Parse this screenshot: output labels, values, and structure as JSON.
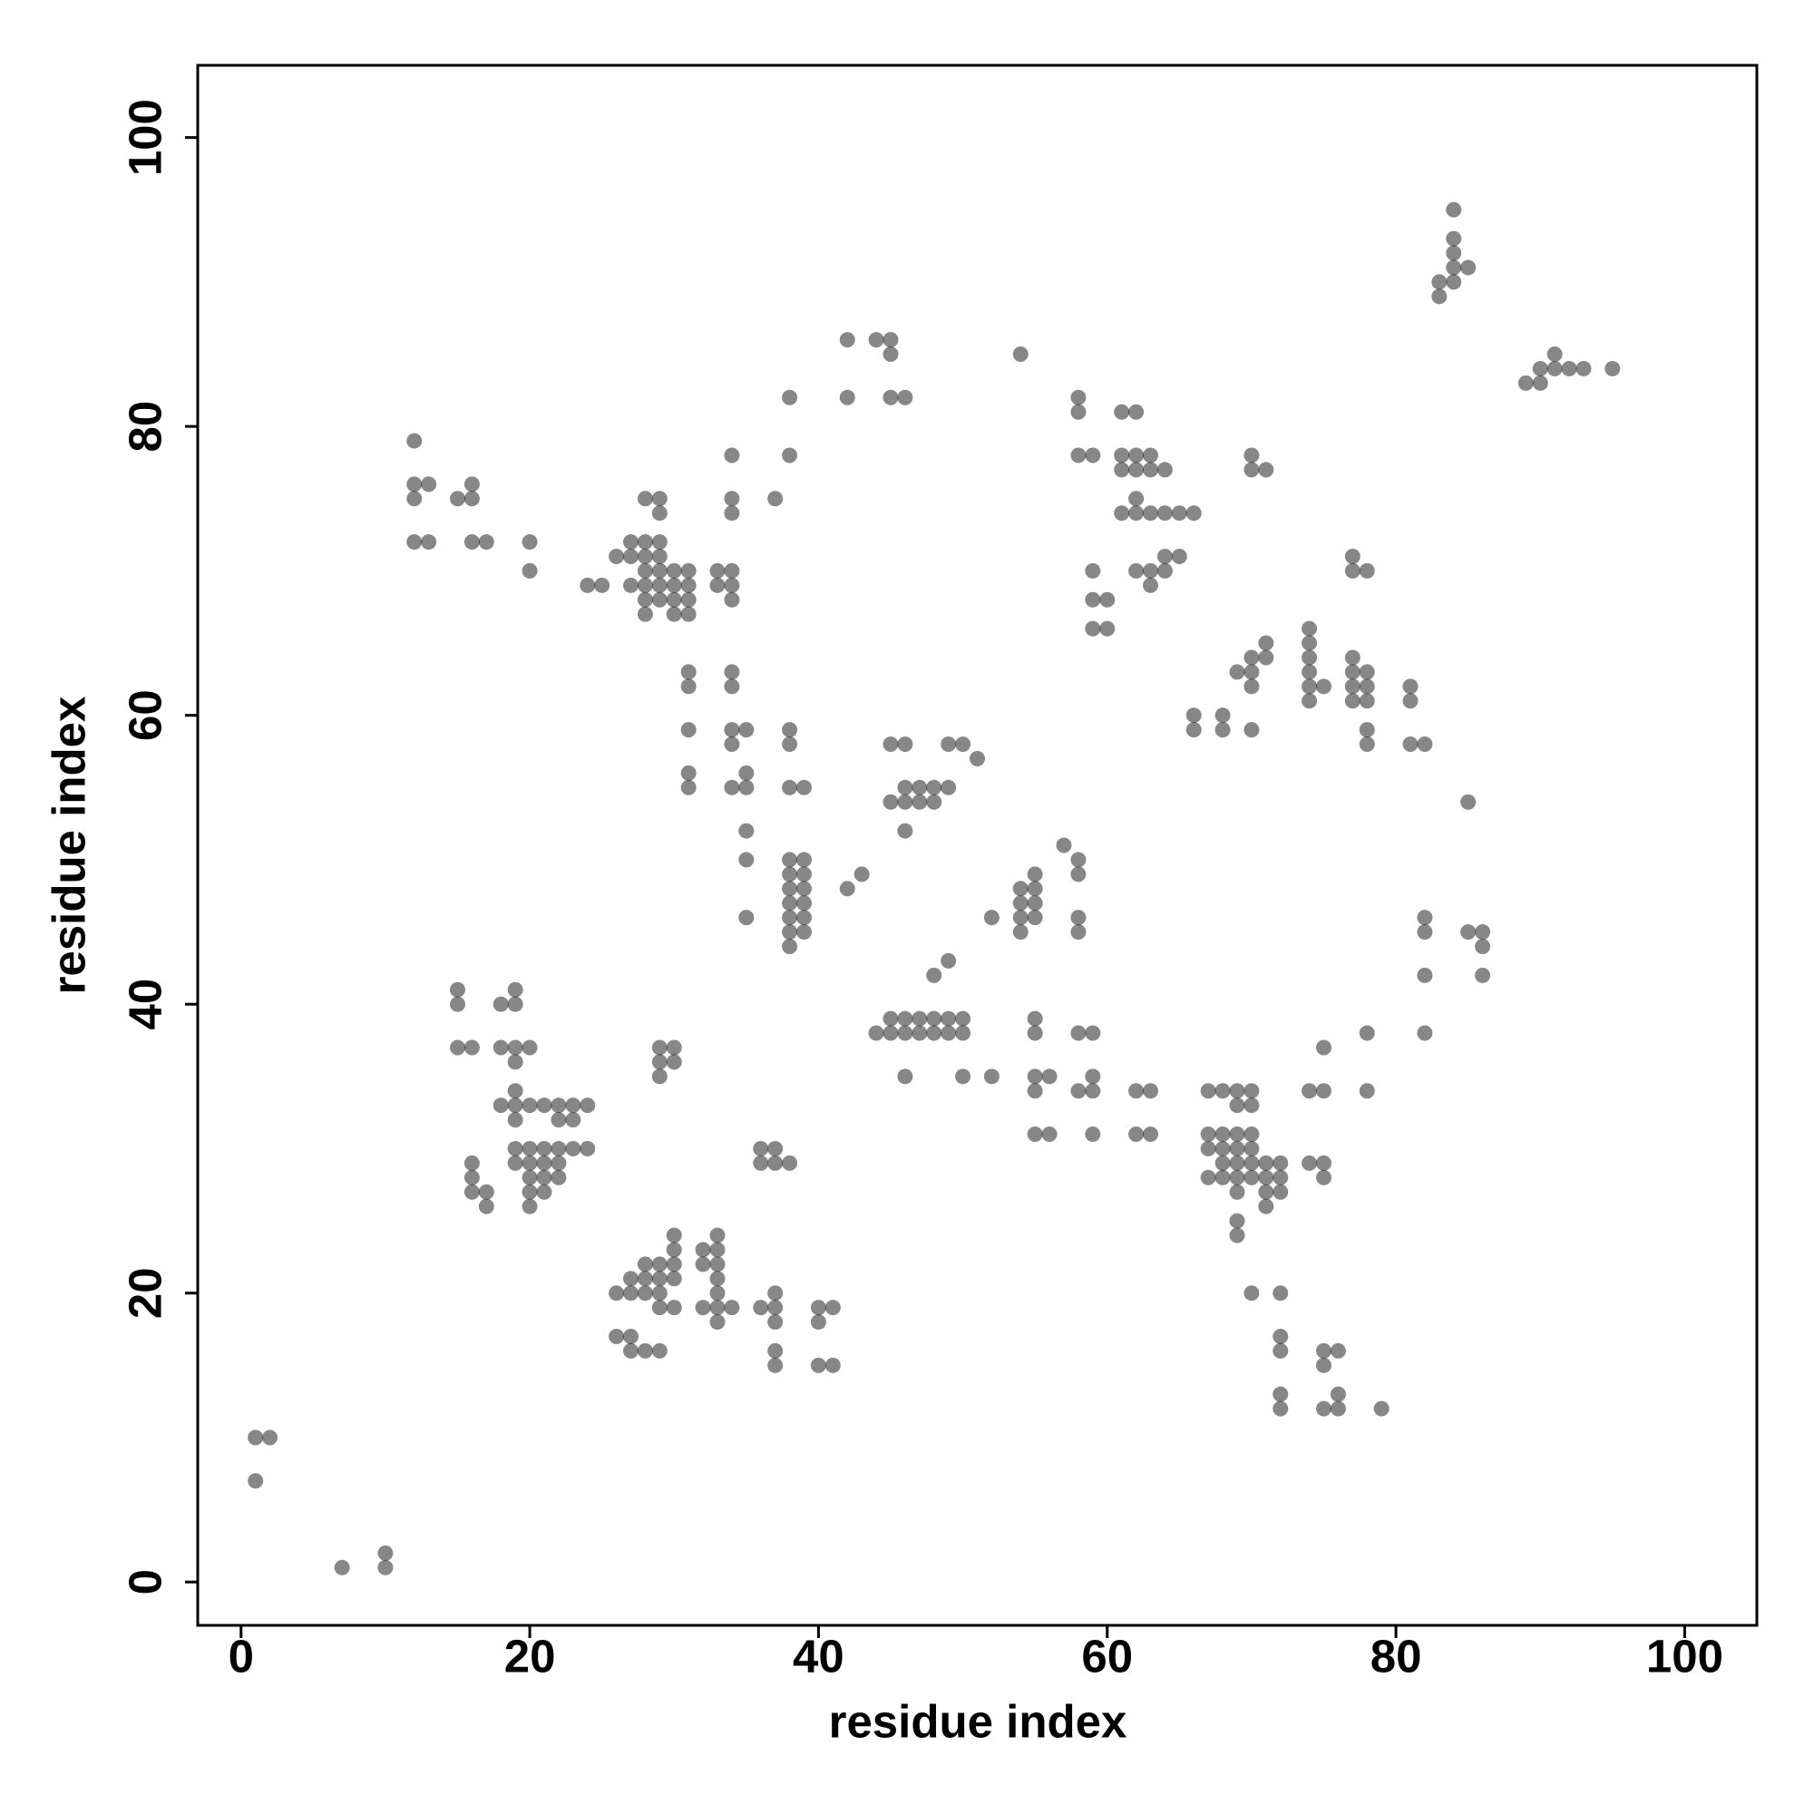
{
  "chart_data": {
    "type": "scatter",
    "xlabel": "residue index",
    "ylabel": "residue index",
    "xlim": [
      -3,
      105
    ],
    "ylim": [
      -3,
      105
    ],
    "xticks": [
      0,
      20,
      40,
      60,
      80,
      100
    ],
    "yticks": [
      0,
      20,
      40,
      60,
      80,
      100
    ],
    "color": "#000000",
    "alpha": 0.47,
    "x": [
      1,
      2,
      1,
      7,
      10,
      10,
      15,
      15,
      19,
      18,
      19,
      15,
      16,
      18,
      19,
      20,
      19,
      18,
      19,
      19,
      20,
      21,
      22,
      23,
      24,
      19,
      22,
      23,
      19,
      20,
      21,
      22,
      23,
      24,
      16,
      19,
      20,
      21,
      22,
      16,
      20,
      21,
      22,
      16,
      17,
      20,
      21,
      17,
      20,
      12,
      12,
      13,
      16,
      12,
      15,
      16,
      12,
      13,
      16,
      17,
      20,
      20,
      24,
      25,
      26,
      27,
      28,
      29,
      27,
      28,
      29,
      28,
      29,
      30,
      31,
      27,
      28,
      29,
      30,
      31,
      28,
      29,
      30,
      31,
      28,
      30,
      31,
      28,
      29,
      29,
      33,
      34,
      33,
      34,
      34,
      34,
      34,
      34,
      37,
      38,
      38,
      42,
      44,
      45,
      45,
      42,
      45,
      46,
      31,
      31,
      34,
      34,
      31,
      34,
      35,
      34,
      31,
      35,
      31,
      34,
      35,
      35,
      35,
      35,
      38,
      38,
      38,
      39,
      38,
      39,
      38,
      39,
      38,
      39,
      38,
      39,
      38,
      39,
      38,
      39,
      38,
      42,
      43,
      45,
      46,
      49,
      50,
      51,
      46,
      47,
      48,
      49,
      45,
      46,
      47,
      48,
      46,
      48,
      49,
      44,
      45,
      46,
      47,
      48,
      45,
      46,
      47,
      48,
      49,
      50,
      49,
      50,
      46,
      50,
      52,
      52,
      54,
      55,
      54,
      55,
      54,
      55,
      54,
      55,
      57,
      58,
      58,
      58,
      58,
      55,
      55,
      58,
      59,
      55,
      56,
      59,
      55,
      58,
      59,
      62,
      63,
      55,
      56,
      59,
      62,
      63,
      58,
      58,
      61,
      62,
      58,
      59,
      61,
      62,
      63,
      61,
      62,
      63,
      64,
      62,
      61,
      62,
      63,
      64,
      65,
      66,
      64,
      65,
      59,
      62,
      63,
      64,
      63,
      59,
      60,
      59,
      60,
      54,
      70,
      70,
      71,
      71,
      70,
      71,
      69,
      70,
      70,
      66,
      68,
      66,
      68,
      70,
      74,
      74,
      74,
      74,
      74,
      75,
      74,
      77,
      77,
      78,
      77,
      78,
      77,
      78,
      77,
      77,
      78,
      78,
      78,
      81,
      81,
      81,
      82,
      85,
      67,
      68,
      69,
      70,
      69,
      70,
      67,
      68,
      69,
      70,
      67,
      68,
      69,
      70,
      68,
      69,
      70,
      71,
      72,
      67,
      68,
      69,
      70,
      71,
      72,
      69,
      71,
      72,
      71,
      69,
      69,
      74,
      75,
      74,
      75,
      75,
      75,
      78,
      78,
      70,
      72,
      72,
      72,
      75,
      76,
      75,
      72,
      76,
      72,
      75,
      76,
      79,
      82,
      82,
      82,
      82,
      85,
      86,
      86,
      86,
      84,
      84,
      84,
      84,
      85,
      83,
      84,
      83,
      89,
      90,
      90,
      91,
      92,
      93,
      95,
      91,
      30,
      33,
      30,
      32,
      33,
      30,
      32,
      33,
      28,
      29,
      27,
      28,
      29,
      30,
      33,
      26,
      27,
      28,
      29,
      33,
      37,
      29,
      30,
      32,
      33,
      34,
      36,
      37,
      40,
      41,
      33,
      37,
      40,
      26,
      27,
      27,
      28,
      29,
      37,
      37,
      40,
      41,
      29,
      30,
      29,
      30,
      29,
      36,
      37,
      37,
      36,
      38
    ],
    "y": [
      10,
      10,
      7,
      1,
      2,
      1,
      41,
      40,
      41,
      40,
      40,
      37,
      37,
      37,
      37,
      37,
      36,
      33,
      34,
      33,
      33,
      33,
      33,
      33,
      33,
      32,
      32,
      32,
      30,
      30,
      30,
      30,
      30,
      30,
      29,
      29,
      29,
      29,
      29,
      28,
      28,
      28,
      28,
      27,
      27,
      27,
      27,
      26,
      26,
      79,
      76,
      76,
      76,
      75,
      75,
      75,
      72,
      72,
      72,
      72,
      72,
      70,
      69,
      69,
      71,
      72,
      72,
      72,
      71,
      71,
      71,
      70,
      70,
      70,
      70,
      69,
      69,
      69,
      69,
      69,
      68,
      68,
      68,
      68,
      67,
      67,
      67,
      75,
      75,
      74,
      70,
      70,
      69,
      69,
      68,
      78,
      75,
      74,
      75,
      82,
      78,
      86,
      86,
      86,
      85,
      82,
      82,
      82,
      63,
      62,
      63,
      62,
      59,
      59,
      59,
      58,
      56,
      56,
      55,
      55,
      55,
      52,
      50,
      46,
      59,
      58,
      55,
      55,
      50,
      50,
      49,
      49,
      48,
      48,
      47,
      47,
      46,
      46,
      45,
      45,
      44,
      48,
      49,
      58,
      58,
      58,
      58,
      57,
      55,
      55,
      55,
      55,
      54,
      54,
      54,
      54,
      52,
      42,
      43,
      38,
      38,
      38,
      38,
      38,
      39,
      39,
      39,
      39,
      39,
      39,
      38,
      38,
      35,
      35,
      35,
      46,
      48,
      48,
      47,
      47,
      46,
      46,
      45,
      49,
      51,
      50,
      49,
      46,
      45,
      39,
      38,
      38,
      38,
      35,
      35,
      35,
      34,
      34,
      34,
      34,
      34,
      31,
      31,
      31,
      31,
      31,
      82,
      81,
      81,
      81,
      78,
      78,
      78,
      78,
      78,
      77,
      77,
      77,
      77,
      75,
      74,
      74,
      74,
      74,
      74,
      74,
      71,
      71,
      70,
      70,
      70,
      70,
      69,
      68,
      68,
      66,
      66,
      85,
      78,
      77,
      77,
      65,
      64,
      64,
      63,
      63,
      62,
      60,
      60,
      59,
      59,
      59,
      66,
      65,
      64,
      63,
      62,
      62,
      61,
      64,
      63,
      63,
      62,
      62,
      61,
      61,
      71,
      70,
      70,
      59,
      58,
      62,
      61,
      58,
      58,
      54,
      34,
      34,
      34,
      34,
      33,
      33,
      31,
      31,
      31,
      31,
      30,
      30,
      30,
      30,
      29,
      29,
      29,
      29,
      29,
      28,
      28,
      28,
      28,
      28,
      28,
      27,
      27,
      27,
      26,
      25,
      24,
      34,
      34,
      29,
      29,
      28,
      37,
      38,
      34,
      20,
      20,
      17,
      16,
      16,
      16,
      15,
      13,
      13,
      12,
      12,
      12,
      12,
      46,
      45,
      42,
      38,
      45,
      45,
      44,
      42,
      95,
      93,
      92,
      91,
      91,
      90,
      90,
      89,
      83,
      83,
      84,
      84,
      84,
      84,
      84,
      85,
      24,
      24,
      23,
      23,
      23,
      22,
      22,
      22,
      22,
      22,
      21,
      21,
      21,
      21,
      21,
      20,
      20,
      20,
      20,
      20,
      20,
      19,
      19,
      19,
      19,
      19,
      19,
      19,
      19,
      19,
      18,
      18,
      18,
      17,
      17,
      16,
      16,
      16,
      16,
      15,
      15,
      15,
      37,
      37,
      36,
      36,
      35,
      29,
      29,
      30,
      30,
      29
    ]
  }
}
